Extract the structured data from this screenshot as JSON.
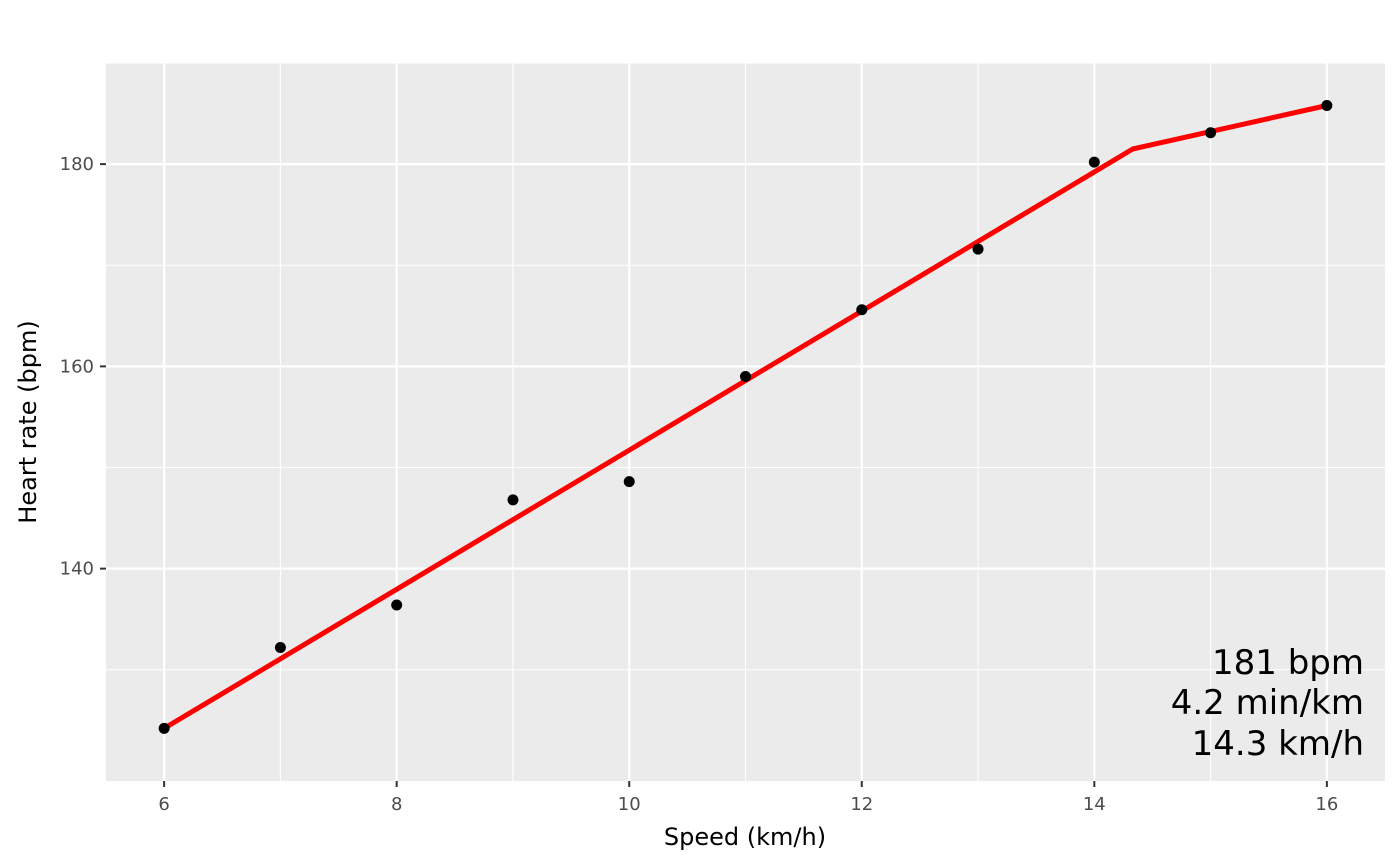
{
  "chart_data": {
    "type": "scatter",
    "title": "",
    "xlabel": "Speed (km/h)",
    "ylabel": "Heart rate (bpm)",
    "xlim": [
      5.5,
      16.5
    ],
    "ylim": [
      119,
      190
    ],
    "x_ticks": [
      6,
      8,
      10,
      12,
      14,
      16
    ],
    "y_ticks": [
      140,
      160,
      180
    ],
    "grid": true,
    "panel_background": "#EBEBEB",
    "grid_color": "#FFFFFF",
    "legend": "none",
    "series": [
      {
        "type": "scatter",
        "color": "#000000",
        "points": [
          {
            "x": 6,
            "y": 124.2
          },
          {
            "x": 7,
            "y": 132.2
          },
          {
            "x": 8,
            "y": 136.4
          },
          {
            "x": 9,
            "y": 146.8
          },
          {
            "x": 10,
            "y": 148.6
          },
          {
            "x": 11,
            "y": 159.0
          },
          {
            "x": 12,
            "y": 165.6
          },
          {
            "x": 13,
            "y": 171.6
          },
          {
            "x": 14,
            "y": 180.2
          },
          {
            "x": 15,
            "y": 183.1
          },
          {
            "x": 16,
            "y": 185.8
          }
        ]
      },
      {
        "type": "line",
        "color": "#FF0000",
        "points": [
          {
            "x": 6,
            "y": 124.2
          },
          {
            "x": 14.33,
            "y": 181.5
          },
          {
            "x": 16,
            "y": 185.8
          }
        ]
      }
    ],
    "annotation": [
      "181 bpm",
      "4.2 min/km",
      "14.3 km/h"
    ]
  }
}
